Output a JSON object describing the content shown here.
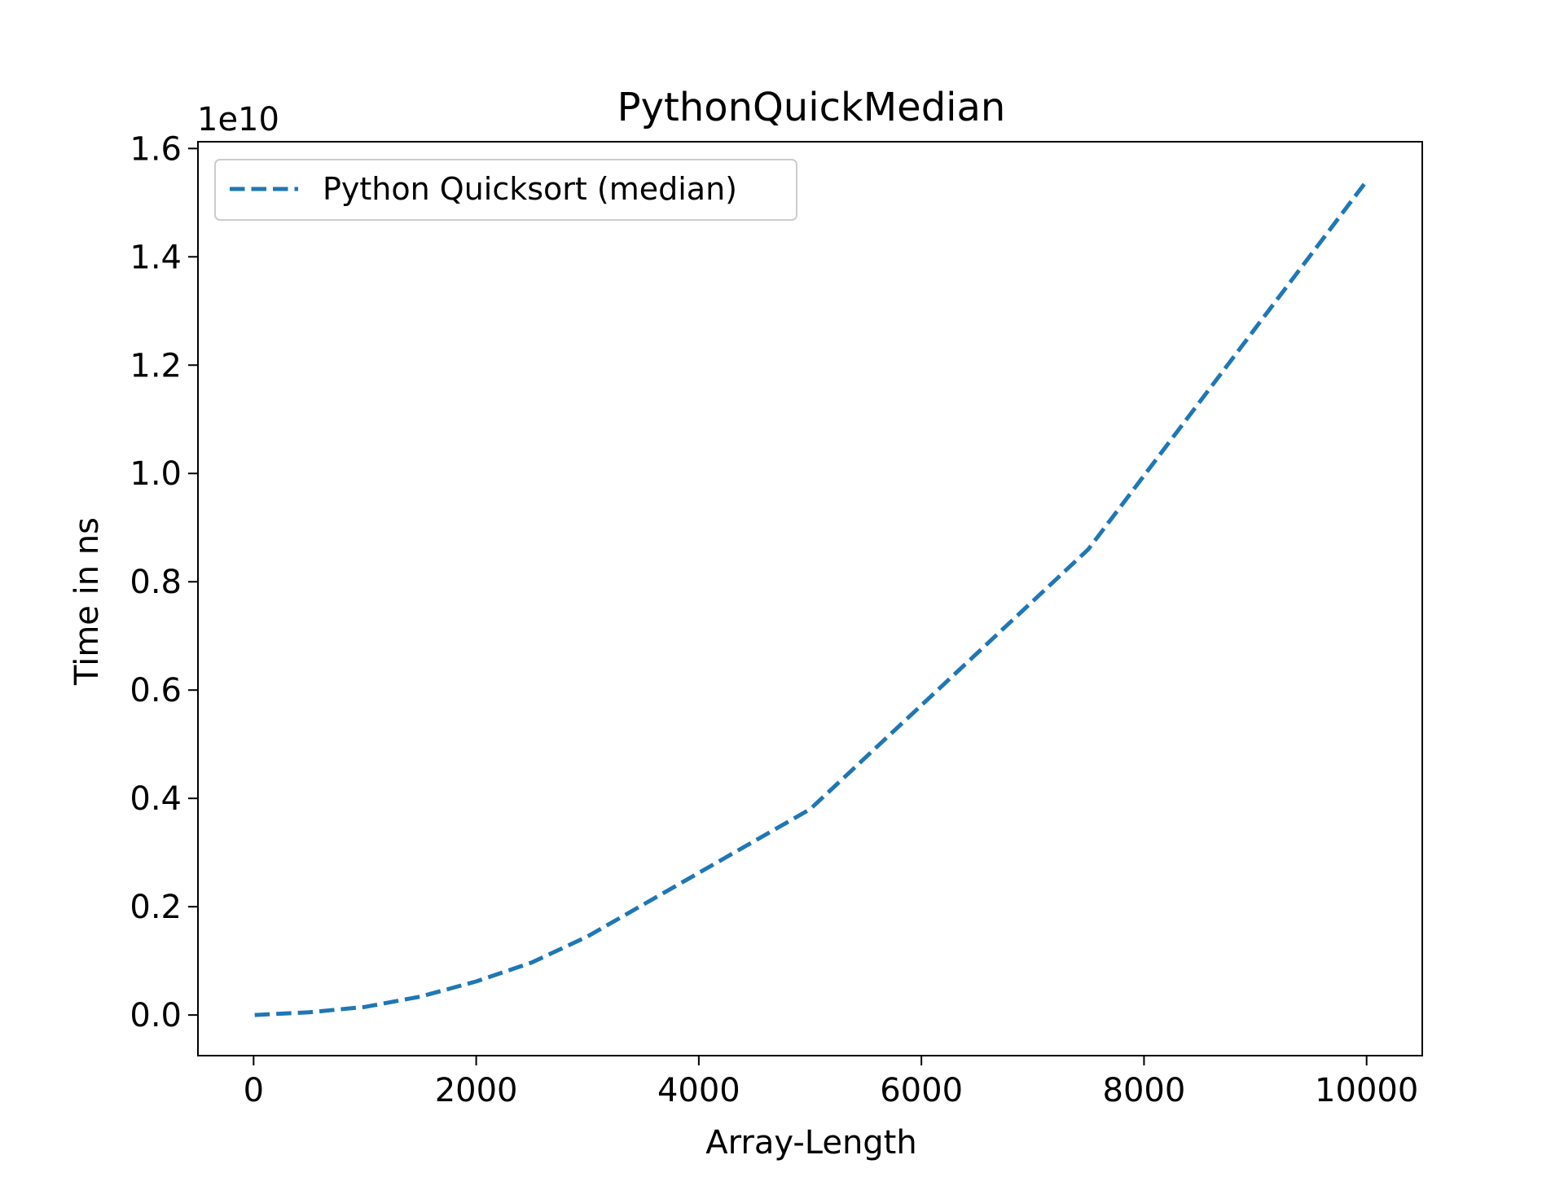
{
  "chart_data": {
    "type": "line",
    "title": "PythonQuickMedian",
    "xlabel": "Array-Length",
    "ylabel": "Time in ns",
    "y_offset_label": "1e10",
    "xlim": [
      -500,
      10500
    ],
    "ylim": [
      -0.075,
      1.6125
    ],
    "y_unit_multiplier": 10000000000,
    "xticks": [
      0,
      2000,
      4000,
      6000,
      8000,
      10000
    ],
    "xtick_labels": [
      "0",
      "2000",
      "4000",
      "6000",
      "8000",
      "10000"
    ],
    "yticks": [
      0.0,
      0.2,
      0.4,
      0.6,
      0.8,
      1.0,
      1.2,
      1.4,
      1.6
    ],
    "ytick_labels": [
      "0.0",
      "0.2",
      "0.4",
      "0.6",
      "0.8",
      "1.0",
      "1.2",
      "1.4",
      "1.6"
    ],
    "grid": false,
    "legend_position": "upper-left",
    "series": [
      {
        "name": "Python Quicksort (median)",
        "color": "#1f77b4",
        "line_style": "dashed",
        "x": [
          10,
          500,
          1000,
          1500,
          2000,
          2500,
          3000,
          5000,
          7500,
          10000
        ],
        "y": [
          0.0,
          0.005,
          0.015,
          0.034,
          0.062,
          0.097,
          0.145,
          0.38,
          0.86,
          1.54
        ]
      }
    ]
  }
}
